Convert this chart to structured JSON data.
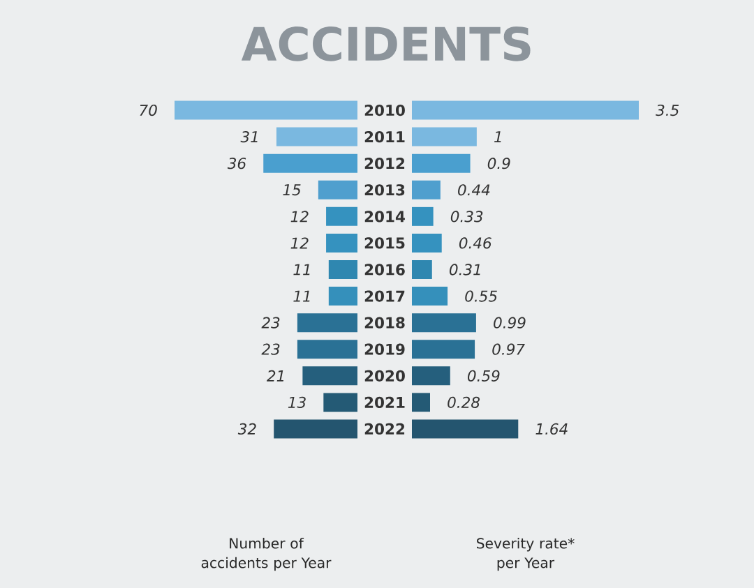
{
  "chart_data": [
    {
      "type": "bar",
      "orientation": "horizontal",
      "title": "ACCIDENTS",
      "xlabel": "Number of accidents per Year",
      "tick_labels": "y",
      "data_labels": true,
      "categories": [
        "2010",
        "2011",
        "2012",
        "2013",
        "2014",
        "2015",
        "2016",
        "2017",
        "2018",
        "2019",
        "2020",
        "2021",
        "2022"
      ],
      "values": [
        70,
        31,
        36,
        15,
        12,
        12,
        11,
        11,
        23,
        23,
        21,
        13,
        32
      ],
      "colors": [
        "#7ab8e0",
        "#7ab8e0",
        "#4a9fcf",
        "#4f9fce",
        "#3592bf",
        "#3592bf",
        "#2f87b0",
        "#3590bb",
        "#2a7195",
        "#2a7195",
        "#255f7d",
        "#245a75",
        "#24556f"
      ]
    },
    {
      "type": "bar",
      "orientation": "horizontal",
      "xlabel": "Severity rate* per Year",
      "tick_labels": false,
      "data_labels": true,
      "categories": [
        "2010",
        "2011",
        "2012",
        "2013",
        "2014",
        "2015",
        "2016",
        "2017",
        "2018",
        "2019",
        "2020",
        "2021",
        "2022"
      ],
      "values": [
        3.5,
        1,
        0.9,
        0.44,
        0.33,
        0.46,
        0.31,
        0.55,
        0.99,
        0.97,
        0.59,
        0.28,
        1.64
      ],
      "colors": [
        "#7ab8e0",
        "#7ab8e0",
        "#4a9fcf",
        "#4f9fce",
        "#3592bf",
        "#3592bf",
        "#2f87b0",
        "#3590bb",
        "#2a7195",
        "#2a7195",
        "#255f7d",
        "#245a75",
        "#24556f"
      ]
    }
  ]
}
